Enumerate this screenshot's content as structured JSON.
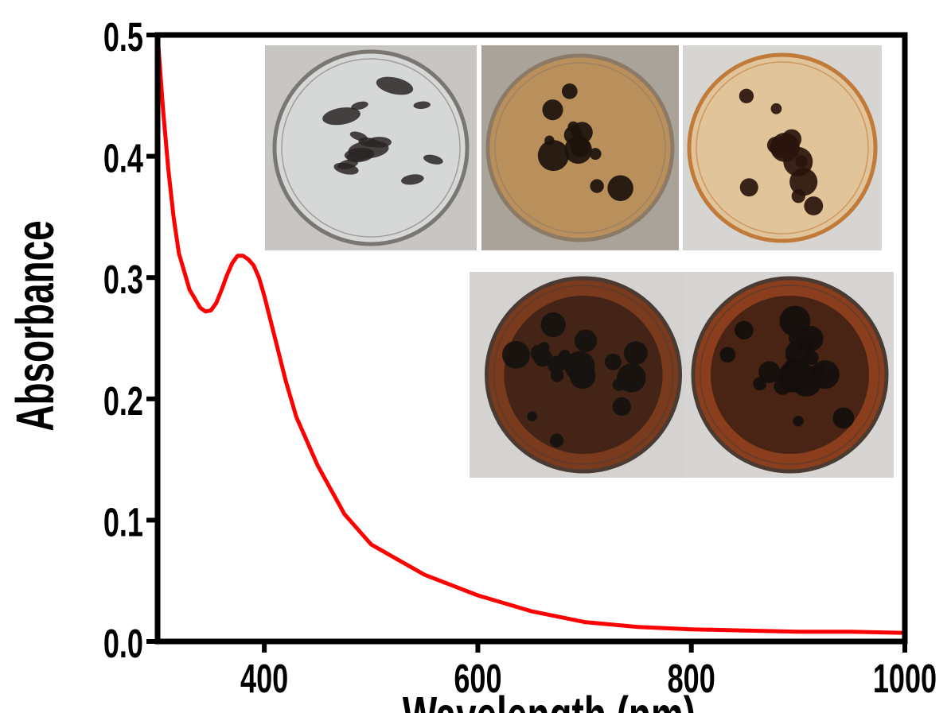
{
  "chart_data": {
    "type": "line",
    "xlabel": "Wavelength (nm)",
    "ylabel": "Absorbance",
    "xlim": [
      300,
      1000
    ],
    "ylim": [
      0.0,
      0.5
    ],
    "x_ticks": [
      400,
      600,
      800,
      1000
    ],
    "x_tick_labels": [
      "400",
      "600",
      "800",
      "1000"
    ],
    "y_ticks": [
      0.0,
      0.1,
      0.2,
      0.3,
      0.4,
      0.5
    ],
    "y_tick_labels": [
      "0.0",
      "0.1",
      "0.2",
      "0.3",
      "0.4",
      "0.5"
    ],
    "grid": false,
    "line_color": "#ff0000",
    "series": [
      {
        "x": [
          300,
          305,
          310,
          315,
          320,
          330,
          340,
          345,
          350,
          355,
          360,
          365,
          370,
          375,
          380,
          385,
          390,
          395,
          400,
          410,
          420,
          430,
          450,
          475,
          500,
          550,
          600,
          650,
          700,
          750,
          800,
          850,
          900,
          950,
          1000
        ],
        "values": [
          0.5,
          0.44,
          0.39,
          0.35,
          0.32,
          0.29,
          0.275,
          0.272,
          0.273,
          0.279,
          0.29,
          0.302,
          0.312,
          0.318,
          0.318,
          0.315,
          0.31,
          0.3,
          0.285,
          0.25,
          0.215,
          0.185,
          0.145,
          0.105,
          0.08,
          0.055,
          0.038,
          0.025,
          0.016,
          0.012,
          0.01,
          0.009,
          0.008,
          0.008,
          0.007
        ]
      }
    ]
  },
  "inset_photos": [
    {
      "name": "petri-dish-1",
      "bg": "#c8c6c2",
      "rim": "#7a7772",
      "fill": "#d6d8d8",
      "spots": "#2a2624"
    },
    {
      "name": "petri-dish-2",
      "bg": "#a9a39a",
      "rim": "#8c7a66",
      "fill": "#b9905c",
      "spots": "#1c120c"
    },
    {
      "name": "petri-dish-3",
      "bg": "#d7d5d2",
      "rim": "#c07a3a",
      "fill": "#e2c49a",
      "spots": "#2a140c"
    },
    {
      "name": "petri-dish-4",
      "bg": "#d4d3d1",
      "rim": "#4a3a32",
      "fill": "#7a3a1e",
      "spots": "#161210"
    },
    {
      "name": "petri-dish-5",
      "bg": "#d6d5d3",
      "rim": "#4b3a30",
      "fill": "#8a3e1e",
      "spots": "#140f0c"
    }
  ]
}
